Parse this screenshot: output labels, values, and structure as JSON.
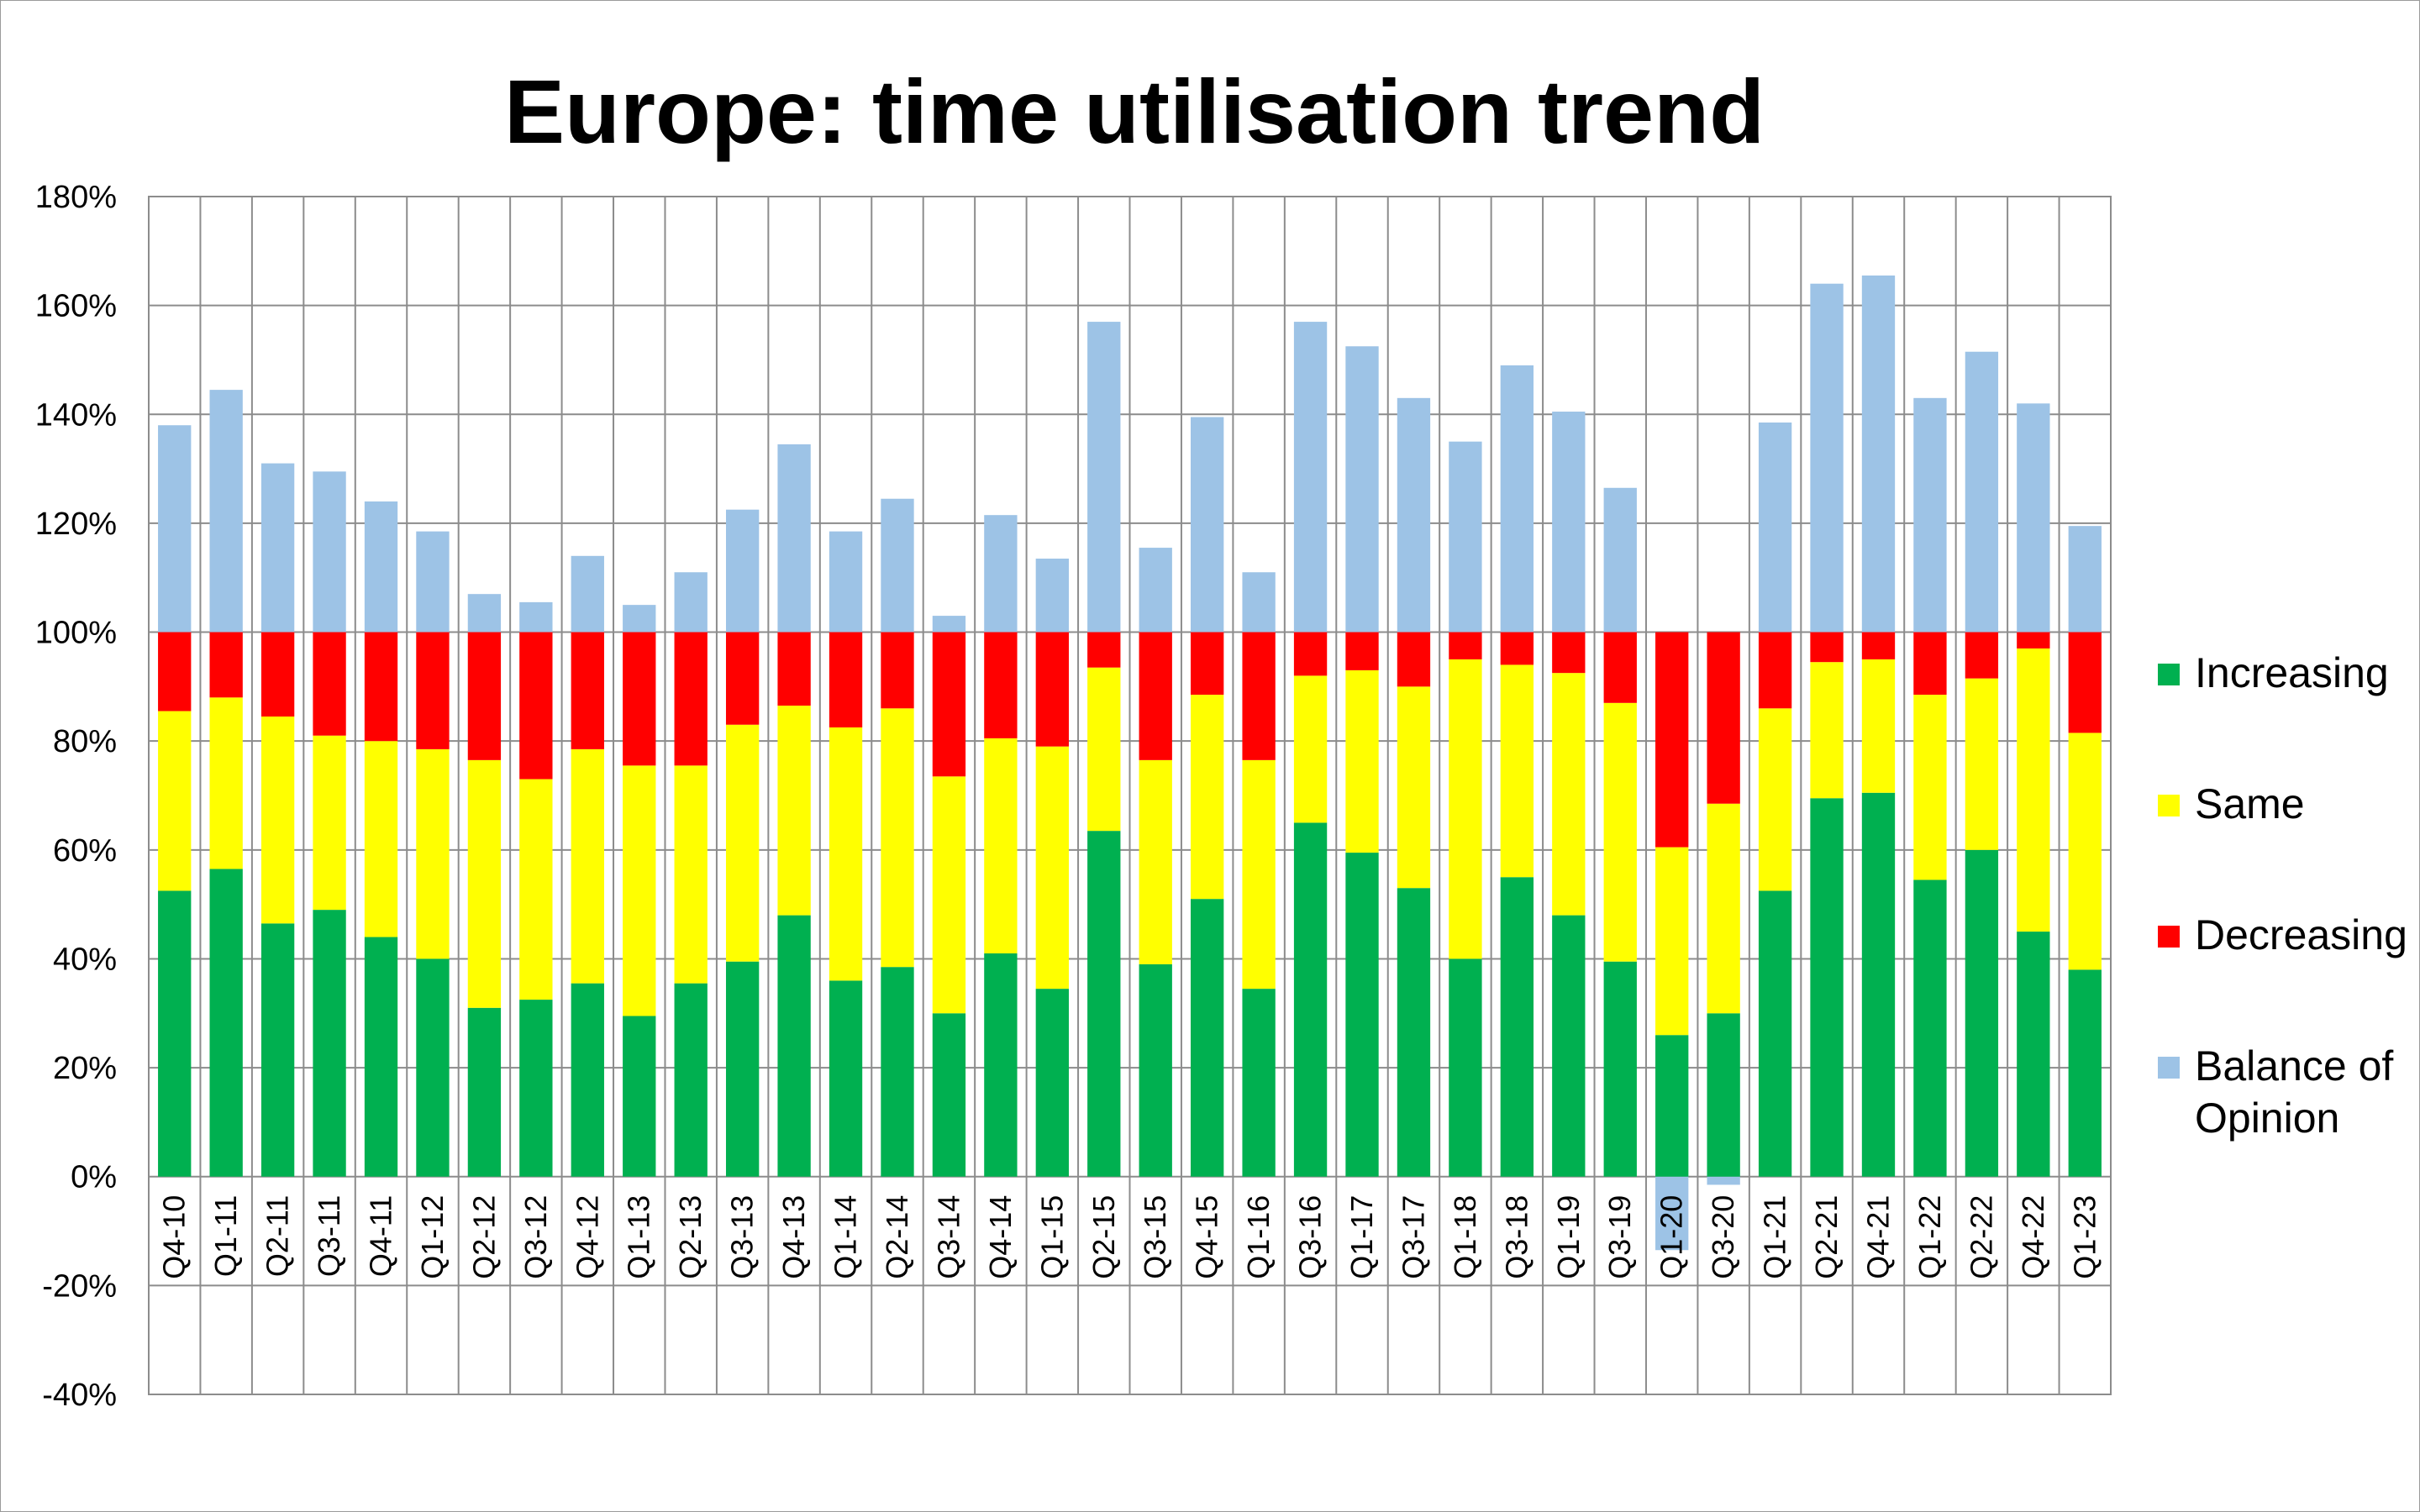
{
  "chart_data": {
    "type": "bar",
    "stacked": true,
    "title": "Europe: time utilisation trend",
    "categories": [
      "Q4-10",
      "Q1-11",
      "Q2-11",
      "Q3-11",
      "Q4-11",
      "Q1-12",
      "Q2-12",
      "Q3-12",
      "Q4-12",
      "Q1-13",
      "Q2-13",
      "Q3-13",
      "Q4-13",
      "Q1-14",
      "Q2-14",
      "Q3-14",
      "Q4-14",
      "Q1-15",
      "Q2-15",
      "Q3-15",
      "Q4-15",
      "Q1-16",
      "Q3-16",
      "Q1-17",
      "Q3-17",
      "Q1-18",
      "Q3-18",
      "Q1-19",
      "Q3-19",
      "Q1-20",
      "Q3-20",
      "Q1-21",
      "Q2-21",
      "Q4-21",
      "Q1-22",
      "Q2-22",
      "Q4-22",
      "Q1-23"
    ],
    "series": [
      {
        "name": "Increasing",
        "color": "#00b050",
        "values": [
          52.5,
          56.5,
          46.5,
          49,
          44,
          40,
          31,
          32.5,
          35.5,
          29.5,
          35.5,
          39.5,
          48,
          36,
          38.5,
          30,
          41,
          34.5,
          63.5,
          39,
          51,
          34.5,
          65,
          59.5,
          53,
          40,
          55,
          48,
          39.5,
          26,
          30,
          52.5,
          69.5,
          70.5,
          54.5,
          60,
          45,
          38
        ]
      },
      {
        "name": "Same",
        "color": "#ffff00",
        "values": [
          33,
          31.5,
          38,
          32,
          36,
          38.5,
          45.5,
          40.5,
          43,
          46,
          40,
          43.5,
          38.5,
          46.5,
          47.5,
          43.5,
          39.5,
          44.5,
          30,
          37.5,
          37.5,
          42,
          27,
          33.5,
          37,
          55,
          39,
          44.5,
          47.5,
          34.5,
          38.5,
          33.5,
          25,
          24.5,
          34,
          31.5,
          52,
          43.5
        ]
      },
      {
        "name": "Decreasing",
        "color": "#ff0000",
        "values": [
          14.5,
          12,
          15.5,
          19,
          20,
          21.5,
          23.5,
          27,
          21.5,
          24.5,
          24.5,
          17,
          13.5,
          17.5,
          14,
          26.5,
          19.5,
          21,
          6.5,
          23.5,
          11.5,
          23.5,
          8,
          7,
          10,
          5,
          6,
          7.5,
          13,
          39.5,
          31.5,
          14,
          5.5,
          5,
          11.5,
          8.5,
          3,
          18.5
        ]
      },
      {
        "name": "Balance of Opinion",
        "color": "#9dc3e6",
        "values": [
          38,
          44.5,
          31,
          29.5,
          24,
          18.5,
          7,
          5.5,
          14,
          5,
          11,
          22.5,
          34.5,
          18.5,
          24.5,
          3,
          21.5,
          13.5,
          57,
          15.5,
          39.5,
          11,
          57,
          52.5,
          43,
          35,
          49,
          40.5,
          26.5,
          -13.5,
          -1.5,
          38.5,
          64,
          65.5,
          43,
          51.5,
          42,
          19.5
        ]
      }
    ],
    "ylim": [
      -40,
      180
    ],
    "yticks": [
      "180%",
      "160%",
      "140%",
      "120%",
      "100%",
      "80%",
      "60%",
      "40%",
      "20%",
      "0%",
      "-20%",
      "-40%"
    ],
    "legend_position": "right",
    "legend_entries": [
      "Increasing",
      "Same",
      "Decreasing",
      "Balance of\nOpinion"
    ],
    "grid": true
  }
}
